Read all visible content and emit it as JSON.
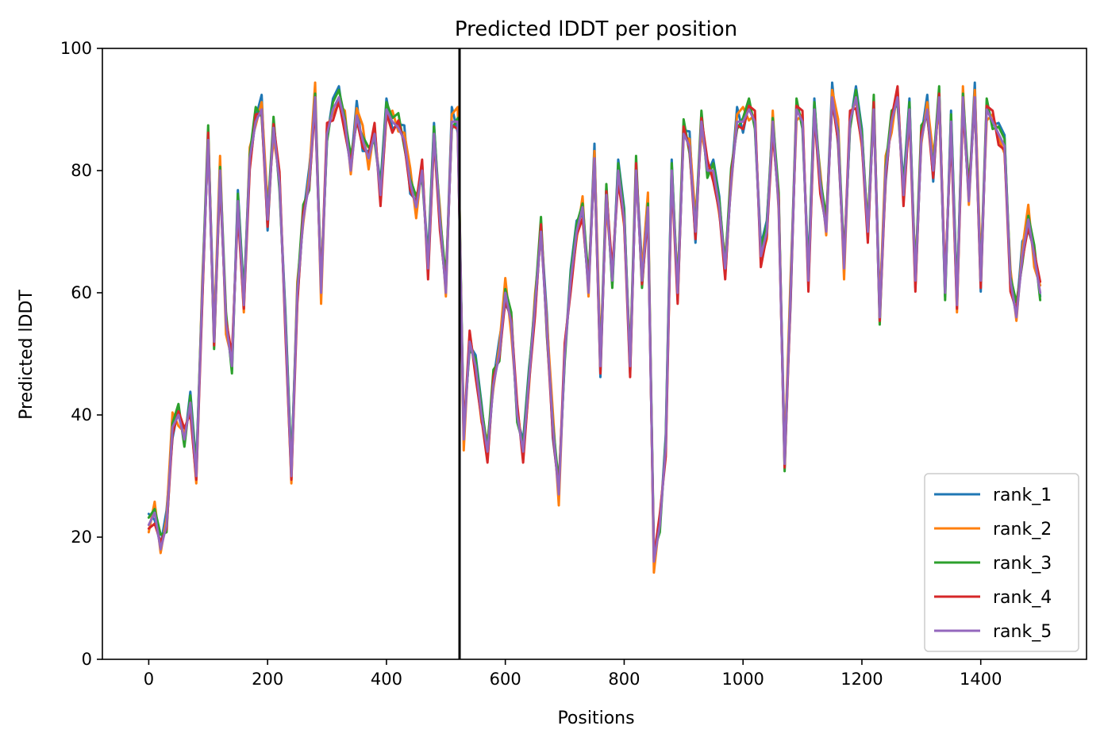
{
  "chart_data": {
    "type": "line",
    "title": "Predicted lDDT per position",
    "xlabel": "Positions",
    "ylabel": "Predicted lDDT",
    "xlim": [
      -78,
      1578
    ],
    "ylim": [
      0,
      100
    ],
    "xticks": [
      0,
      200,
      400,
      600,
      800,
      1000,
      1200,
      1400
    ],
    "yticks": [
      0,
      20,
      40,
      60,
      80,
      100
    ],
    "vline_x": 523,
    "legend_position": "lower-right",
    "series": [
      {
        "name": "rank_1",
        "color": "#1f77b4"
      },
      {
        "name": "rank_2",
        "color": "#ff7f0e"
      },
      {
        "name": "rank_3",
        "color": "#2ca02c"
      },
      {
        "name": "rank_4",
        "color": "#d62728"
      },
      {
        "name": "rank_5",
        "color": "#9467bd"
      }
    ],
    "x": [
      0,
      10,
      20,
      30,
      40,
      50,
      60,
      70,
      80,
      90,
      100,
      110,
      120,
      130,
      140,
      150,
      160,
      170,
      180,
      190,
      200,
      210,
      220,
      230,
      240,
      250,
      260,
      270,
      280,
      290,
      300,
      310,
      320,
      330,
      340,
      350,
      360,
      370,
      380,
      390,
      400,
      410,
      420,
      430,
      440,
      450,
      460,
      470,
      480,
      490,
      500,
      510,
      520,
      530,
      540,
      550,
      560,
      570,
      580,
      590,
      600,
      610,
      620,
      630,
      640,
      650,
      660,
      670,
      680,
      690,
      700,
      710,
      720,
      730,
      740,
      750,
      760,
      770,
      780,
      790,
      800,
      810,
      820,
      830,
      840,
      850,
      860,
      870,
      880,
      890,
      900,
      910,
      920,
      930,
      940,
      950,
      960,
      970,
      980,
      990,
      1000,
      1010,
      1020,
      1030,
      1040,
      1050,
      1060,
      1070,
      1080,
      1090,
      1100,
      1110,
      1120,
      1130,
      1140,
      1150,
      1160,
      1170,
      1180,
      1190,
      1200,
      1210,
      1220,
      1230,
      1240,
      1250,
      1260,
      1270,
      1280,
      1290,
      1300,
      1310,
      1320,
      1330,
      1340,
      1350,
      1360,
      1370,
      1380,
      1390,
      1400,
      1410,
      1420,
      1430,
      1440,
      1450,
      1460,
      1470,
      1480,
      1490,
      1500
    ],
    "base_values": [
      22,
      24,
      18,
      22,
      38,
      40,
      36,
      42,
      30,
      60,
      85,
      52,
      80,
      55,
      48,
      75,
      58,
      82,
      88,
      90,
      72,
      87,
      78,
      55,
      30,
      60,
      72,
      78,
      92,
      60,
      86,
      90,
      92,
      88,
      80,
      89,
      85,
      82,
      86,
      76,
      90,
      88,
      87,
      85,
      78,
      74,
      80,
      64,
      86,
      72,
      60,
      88,
      88,
      36,
      52,
      48,
      40,
      34,
      45,
      50,
      60,
      55,
      40,
      34,
      46,
      58,
      70,
      54,
      38,
      27,
      50,
      62,
      70,
      74,
      60,
      82,
      48,
      76,
      62,
      80,
      72,
      48,
      80,
      62,
      74,
      16,
      22,
      35,
      80,
      60,
      86,
      84,
      70,
      88,
      80,
      80,
      74,
      64,
      78,
      88,
      88,
      90,
      88,
      66,
      70,
      88,
      74,
      32,
      60,
      90,
      88,
      62,
      90,
      78,
      70,
      92,
      86,
      64,
      88,
      92,
      85,
      70,
      90,
      56,
      80,
      88,
      92,
      76,
      90,
      62,
      85,
      90,
      80,
      92,
      60,
      88,
      58,
      92,
      75,
      92,
      62,
      90,
      88,
      86,
      84,
      62,
      56,
      66,
      72,
      66,
      60
    ]
  }
}
